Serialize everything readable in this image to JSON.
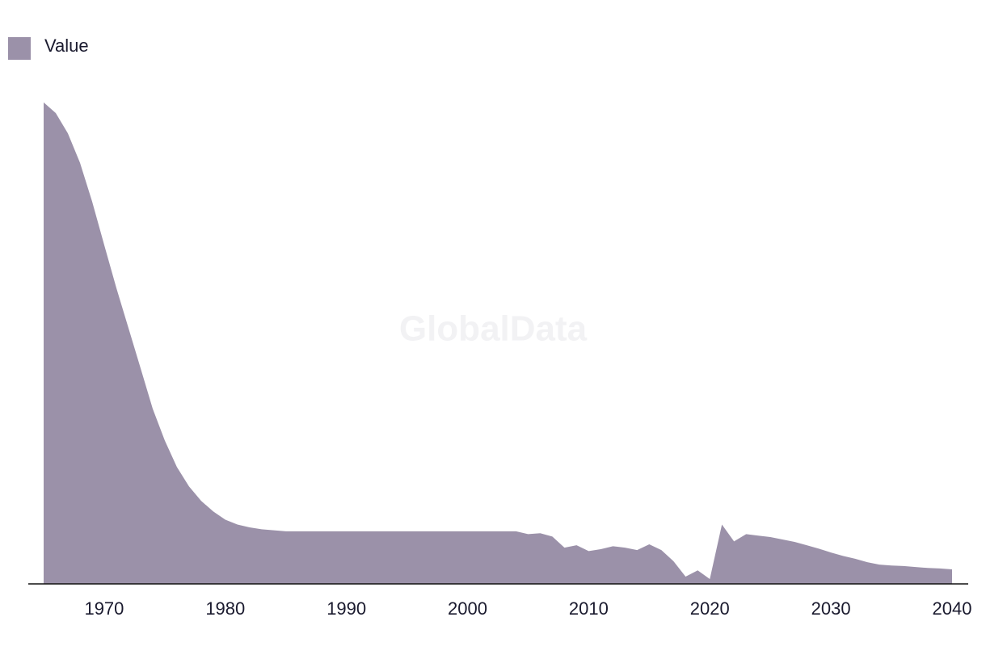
{
  "chart_data": {
    "type": "area",
    "watermark": "GlobalData",
    "x": [
      1965,
      1966,
      1967,
      1968,
      1969,
      1970,
      1971,
      1972,
      1973,
      1974,
      1975,
      1976,
      1977,
      1978,
      1979,
      1980,
      1981,
      1982,
      1983,
      1984,
      1985,
      1986,
      1987,
      1988,
      1989,
      1990,
      1991,
      1992,
      1993,
      1994,
      1995,
      1996,
      1997,
      1998,
      1999,
      2000,
      2001,
      2002,
      2003,
      2004,
      2005,
      2006,
      2007,
      2008,
      2009,
      2010,
      2011,
      2012,
      2013,
      2014,
      2015,
      2016,
      2017,
      2018,
      2019,
      2020,
      2021,
      2022,
      2023,
      2024,
      2025,
      2026,
      2027,
      2028,
      2029,
      2030,
      2031,
      2032,
      2033,
      2034,
      2035,
      2036,
      2037,
      2038,
      2039,
      2040
    ],
    "series": [
      {
        "name": "Value",
        "color": "#9b91a9",
        "values": [
          99.7,
          97.5,
          93.3,
          87.2,
          79.2,
          70.2,
          61.3,
          53,
          44.7,
          36.3,
          29.7,
          24.2,
          20.2,
          17.2,
          15,
          13.3,
          12.3,
          11.7,
          11.3,
          11.1,
          10.9,
          10.9,
          10.9,
          10.9,
          10.9,
          10.9,
          10.9,
          10.9,
          10.9,
          10.9,
          10.9,
          10.9,
          10.9,
          10.9,
          10.9,
          10.9,
          10.9,
          10.9,
          10.9,
          10.9,
          10.3,
          10.5,
          9.8,
          7.5,
          8,
          6.8,
          7.2,
          7.8,
          7.5,
          7,
          8.2,
          7,
          4.7,
          1.5,
          2.8,
          1,
          12.3,
          8.8,
          10.3,
          10,
          9.7,
          9.2,
          8.7,
          8,
          7.3,
          6.5,
          5.8,
          5.2,
          4.5,
          4,
          3.8,
          3.7,
          3.5,
          3.3,
          3.2,
          3
        ]
      }
    ],
    "xlim": [
      1965,
      2040
    ],
    "xticks": [
      1970,
      1980,
      1990,
      2000,
      2010,
      2020,
      2030,
      2040
    ],
    "ylim": [
      0,
      100
    ],
    "legend": "top-left"
  }
}
